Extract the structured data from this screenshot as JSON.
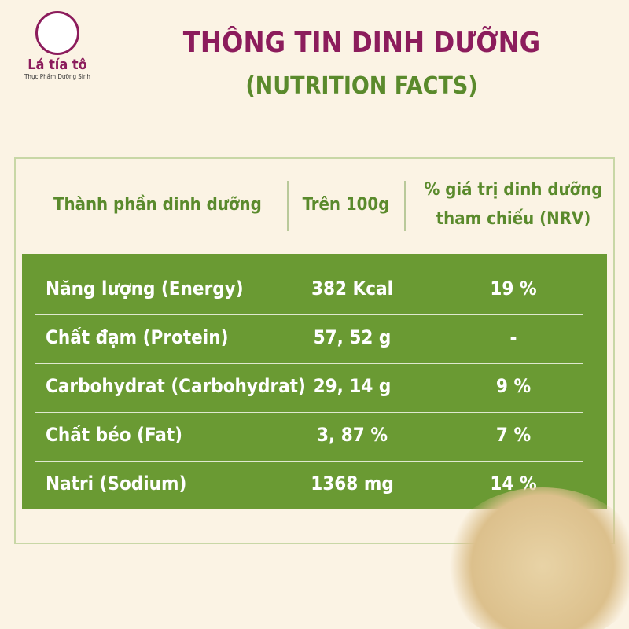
{
  "logo": {
    "name": "Lá tía tô",
    "tagline": "Thực Phẩm Dưỡng Sinh"
  },
  "header": {
    "title": "THÔNG TIN DINH DƯỠNG",
    "subtitle": "(NUTRITION FACTS)"
  },
  "table": {
    "headers": [
      "Thành phần dinh dưỡng",
      "Trên 100g",
      "% giá trị dinh dưỡng tham chiếu (NRV)"
    ],
    "rows": [
      [
        "Năng lượng (Energy)",
        "382 Kcal",
        "19 %"
      ],
      [
        "Chất đạm (Protein)",
        "57, 52 g",
        "-"
      ],
      [
        "Carbohydrat (Carbohydrat)",
        "29, 14 g",
        "9 %"
      ],
      [
        "Chất béo (Fat)",
        "3, 87 %",
        "7 %"
      ],
      [
        "Natri (Sodium)",
        "1368 mg",
        "14 %"
      ]
    ]
  }
}
